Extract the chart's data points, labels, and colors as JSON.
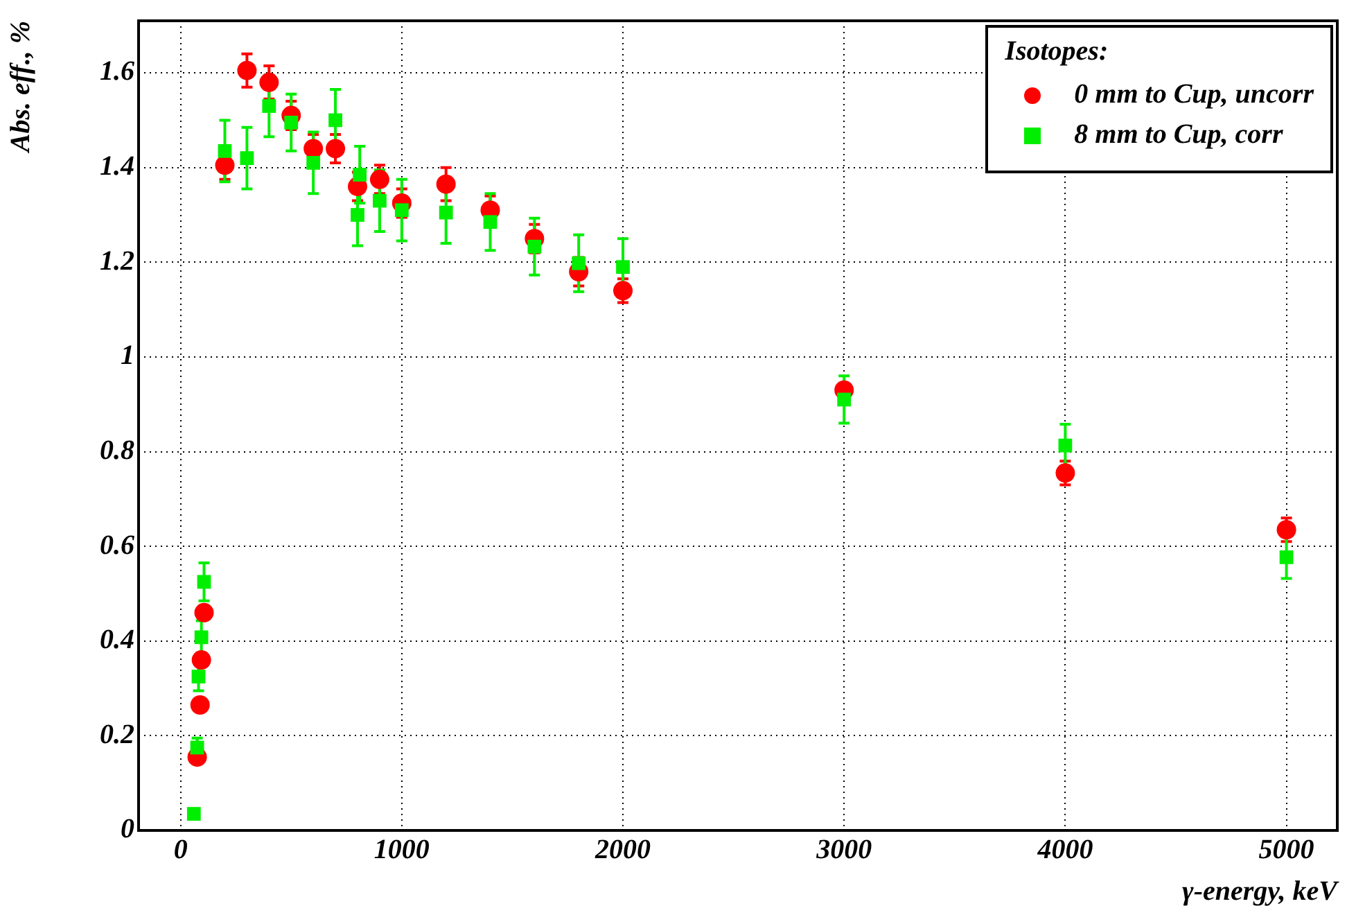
{
  "chart_data": {
    "type": "scatter",
    "xlabel": "γ-energy, keV",
    "ylabel": "Abs. eff., %",
    "legend_title": "Isotopes:",
    "legend": "top right",
    "grid": true,
    "xlim": [
      -190,
      5230
    ],
    "ylim": [
      0,
      1.71
    ],
    "xticks": [
      0,
      1000,
      2000,
      3000,
      4000,
      5000
    ],
    "yticks": [
      0,
      0.2,
      0.4,
      0.6,
      0.8,
      1,
      1.2,
      1.4,
      1.6
    ],
    "series": [
      {
        "name": "0 mm to Cup, uncorr",
        "color": "#ff0000",
        "marker": "circle",
        "x": [
          75,
          88,
          94,
          106,
          200,
          300,
          400,
          500,
          600,
          700,
          800,
          900,
          1000,
          1200,
          1400,
          1600,
          1800,
          2000,
          3000,
          4000,
          5000
        ],
        "values": [
          0.155,
          0.265,
          0.36,
          0.46,
          1.405,
          1.605,
          1.58,
          1.51,
          1.44,
          1.44,
          1.36,
          1.375,
          1.325,
          1.365,
          1.31,
          1.25,
          1.18,
          1.14,
          0.93,
          0.755,
          0.635
        ],
        "errors": [
          null,
          null,
          null,
          null,
          0.03,
          0.035,
          0.035,
          0.03,
          0.03,
          0.03,
          0.03,
          0.03,
          0.03,
          0.035,
          0.03,
          0.03,
          0.03,
          0.025,
          null,
          0.025,
          0.025
        ]
      },
      {
        "name": "8 mm to Cup, corr",
        "color": "#00ee00",
        "marker": "square",
        "x": [
          60,
          75,
          81,
          94,
          106,
          200,
          300,
          400,
          500,
          600,
          700,
          800,
          810,
          900,
          1000,
          1200,
          1400,
          1600,
          1800,
          2000,
          3000,
          4000,
          5000
        ],
        "values": [
          0.035,
          0.175,
          0.325,
          0.408,
          0.525,
          1.435,
          1.42,
          1.53,
          1.495,
          1.41,
          1.5,
          1.3,
          1.385,
          1.33,
          1.31,
          1.305,
          1.285,
          1.233,
          1.198,
          1.19,
          0.91,
          0.813,
          0.577
        ],
        "errors": [
          null,
          0.02,
          0.03,
          0.035,
          0.04,
          0.065,
          0.065,
          0.065,
          0.06,
          0.065,
          0.065,
          0.065,
          0.06,
          0.065,
          0.065,
          0.065,
          0.06,
          0.06,
          0.06,
          0.06,
          0.05,
          0.045,
          0.045
        ]
      }
    ]
  }
}
